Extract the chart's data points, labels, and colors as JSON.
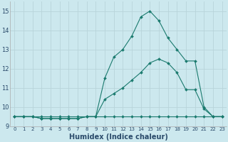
{
  "xlabel": "Humidex (Indice chaleur)",
  "bg_color": "#cce8ee",
  "grid_color": "#b8d4da",
  "line_color": "#1a7a6e",
  "xlim": [
    -0.5,
    23.5
  ],
  "ylim": [
    9,
    15.5
  ],
  "yticks": [
    9,
    10,
    11,
    12,
    13,
    14,
    15
  ],
  "xticks": [
    0,
    1,
    2,
    3,
    4,
    5,
    6,
    7,
    8,
    9,
    10,
    11,
    12,
    13,
    14,
    15,
    16,
    17,
    18,
    19,
    20,
    21,
    22,
    23
  ],
  "line1_x": [
    0,
    1,
    2,
    3,
    4,
    5,
    6,
    7,
    8,
    9,
    10,
    11,
    12,
    13,
    14,
    15,
    16,
    17,
    18,
    19,
    20,
    21,
    22,
    23
  ],
  "line1_y": [
    9.5,
    9.5,
    9.5,
    9.5,
    9.5,
    9.5,
    9.5,
    9.5,
    9.5,
    9.5,
    9.5,
    9.5,
    9.5,
    9.5,
    9.5,
    9.5,
    9.5,
    9.5,
    9.5,
    9.5,
    9.5,
    9.5,
    9.5,
    9.5
  ],
  "line2_x": [
    0,
    1,
    2,
    3,
    4,
    5,
    6,
    7,
    8,
    9,
    10,
    11,
    12,
    13,
    14,
    15,
    16,
    17,
    18,
    19,
    20,
    21,
    22,
    23
  ],
  "line2_y": [
    9.5,
    9.5,
    9.5,
    9.4,
    9.4,
    9.4,
    9.4,
    9.4,
    9.5,
    9.5,
    10.4,
    10.7,
    11.0,
    11.4,
    11.8,
    12.3,
    12.5,
    12.3,
    11.8,
    10.9,
    10.9,
    9.9,
    9.5,
    9.5
  ],
  "line3_x": [
    0,
    1,
    2,
    3,
    4,
    5,
    6,
    7,
    8,
    9,
    10,
    11,
    12,
    13,
    14,
    15,
    16,
    17,
    18,
    19,
    20,
    21,
    22,
    23
  ],
  "line3_y": [
    9.5,
    9.5,
    9.5,
    9.4,
    9.4,
    9.4,
    9.4,
    9.4,
    9.5,
    9.5,
    11.5,
    12.6,
    13.0,
    13.7,
    14.7,
    15.0,
    14.5,
    13.6,
    13.0,
    12.4,
    12.4,
    10.0,
    9.5,
    9.5
  ],
  "tick_color": "#2a4a6a",
  "xlabel_fontsize": 7,
  "ytick_fontsize": 6,
  "xtick_fontsize": 5
}
